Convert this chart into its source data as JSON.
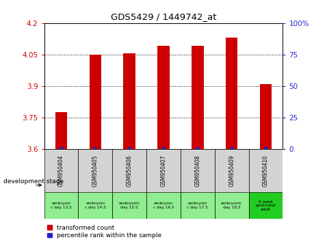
{
  "title": "GDS5429 / 1449742_at",
  "samples": [
    "GSM950404",
    "GSM950405",
    "GSM950406",
    "GSM950407",
    "GSM950408",
    "GSM950409",
    "GSM950410"
  ],
  "red_values": [
    3.775,
    4.05,
    4.055,
    4.09,
    4.09,
    4.13,
    3.91
  ],
  "blue_heights": [
    0.008,
    0.008,
    0.008,
    0.008,
    0.008,
    0.008,
    0.008
  ],
  "ylim": [
    3.6,
    4.2
  ],
  "yticks": [
    3.6,
    3.75,
    3.9,
    4.05,
    4.2
  ],
  "right_ytick_vals": [
    0,
    25,
    50,
    75,
    100
  ],
  "right_ylabels": [
    "0",
    "25",
    "50",
    "75",
    "100%"
  ],
  "dev_labels_line1": [
    "embryoni",
    "embryoni",
    "embryonic",
    "embryoni",
    "embryoni",
    "embryonic",
    "8 week"
  ],
  "dev_labels_line2": [
    "c day 13.5",
    "c day 14.5",
    "day 15.5",
    "c day 16.5",
    "c day 17.5",
    "day 18.5",
    "post-natal"
  ],
  "dev_labels_line3": [
    "",
    "",
    "",
    "",
    "",
    "",
    "adult"
  ],
  "dev_colors_6": "#90ee90",
  "dev_color_last": "#22cc22",
  "bar_color_red": "#cc0000",
  "bar_color_blue": "#2222cc",
  "tick_color_left": "#cc0000",
  "tick_color_right": "#2222cc",
  "bg_gray": "#d3d3d3",
  "legend_red": "transformed count",
  "legend_blue": "percentile rank within the sample",
  "dev_stage_label": "development stage"
}
